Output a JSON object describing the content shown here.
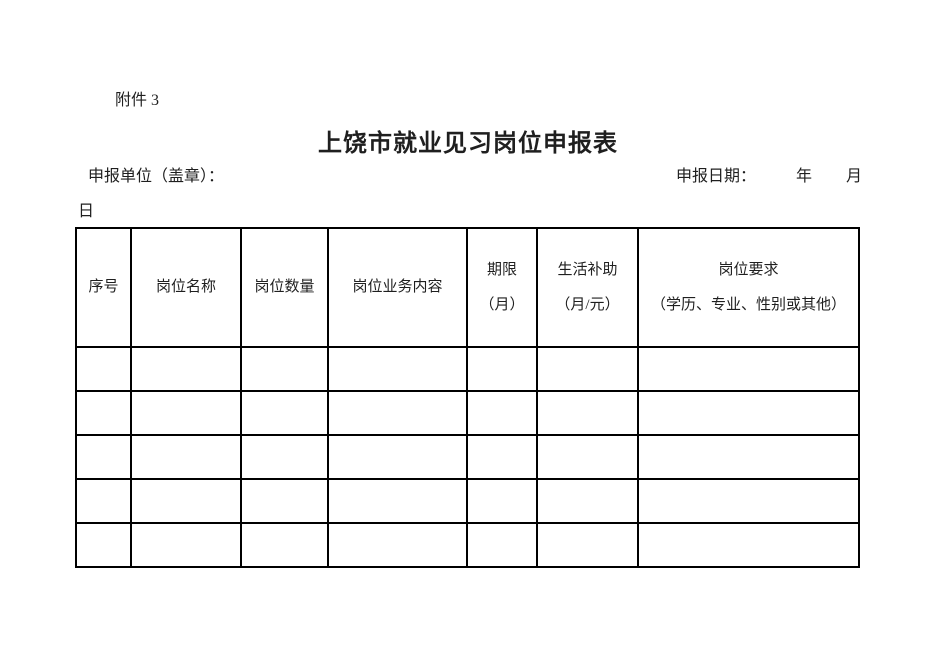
{
  "page": {
    "attachment_label": "附件 3",
    "title": "上饶市就业见习岗位申报表",
    "declare_unit_label": "申报单位（盖章）：",
    "declare_date_label": "申报日期：",
    "year_label": "年",
    "month_label": "月",
    "day_label": "日"
  },
  "table": {
    "headers": [
      {
        "line1": "序号"
      },
      {
        "line1": "岗位名称"
      },
      {
        "line1": "岗位数量"
      },
      {
        "line1": "岗位业务内容"
      },
      {
        "line1": "期限",
        "line2": "（月）"
      },
      {
        "line1": "生活补助",
        "line2": "（月/元）"
      },
      {
        "line1": "岗位要求",
        "line2": "（学历、专业、性别或其他）"
      }
    ],
    "column_count": 7,
    "blank_row_count": 5
  },
  "colors": {
    "text": "#1f1f1f",
    "border": "#000000",
    "background": "#ffffff"
  }
}
